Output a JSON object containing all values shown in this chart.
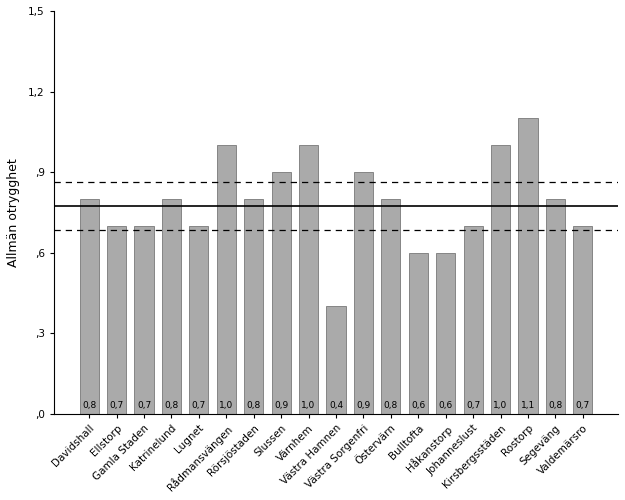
{
  "categories": [
    "Davidshall",
    "Ellstorp",
    "Gamla Staden",
    "Katrinelund",
    "Lugnet",
    "Rådmansvängen",
    "Rörsjöstaden",
    "Slussen",
    "Värnhem",
    "Västra Hamnen",
    "Västra Sorgenfri",
    "Östervärn",
    "Bulltofta",
    "Håkanstorp",
    "Johanneslust",
    "Kirsbergsstäden",
    "Rostorp",
    "Segeväng",
    "Valdemärsro"
  ],
  "values": [
    0.8,
    0.7,
    0.7,
    0.8,
    0.7,
    1.0,
    0.8,
    0.9,
    1.0,
    0.4,
    0.9,
    0.8,
    0.6,
    0.6,
    0.7,
    1.0,
    1.1,
    0.8,
    0.7
  ],
  "bar_color": "#aaaaaa",
  "bar_edge_color": "#666666",
  "ylabel": "Allmän otrygghet",
  "ylim": [
    0.0,
    1.5
  ],
  "yticks": [
    0.0,
    0.3,
    0.6,
    0.9,
    1.2,
    1.5
  ],
  "ytick_labels": [
    ",0",
    ",3",
    ",6",
    ",9",
    "1,2",
    "1,5"
  ],
  "mean_line": 0.775,
  "upper_dashed": 0.865,
  "lower_dashed": 0.685,
  "background_color": "#ffffff",
  "label_fontsize": 6.5,
  "tick_fontsize": 7.5,
  "ylabel_fontsize": 9
}
